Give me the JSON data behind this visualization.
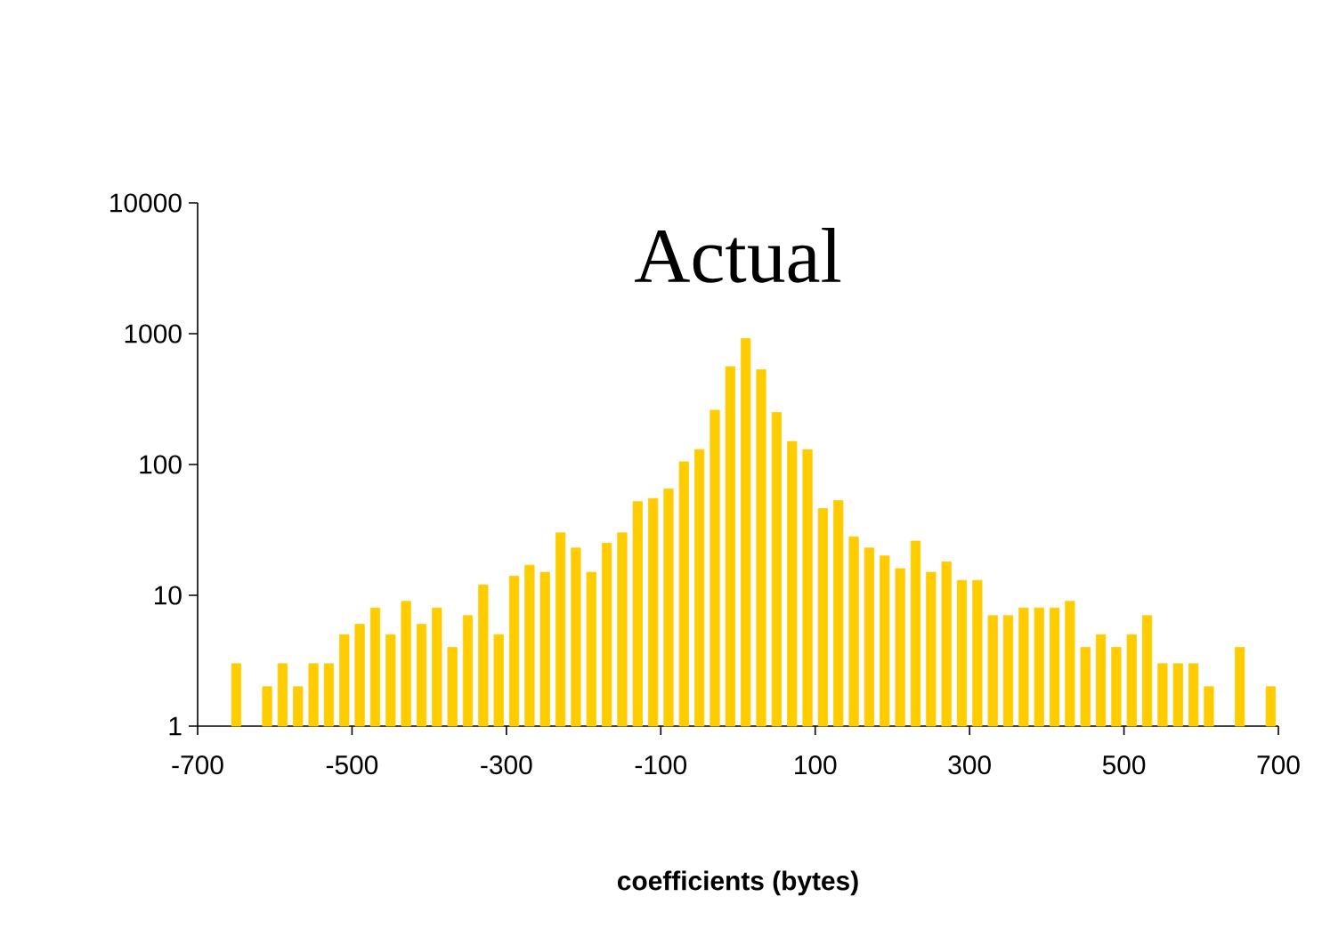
{
  "chart_data": {
    "type": "histogram",
    "title": "Actual",
    "xlabel": "coefficients (bytes)",
    "color": "#ffcc00",
    "log": "y",
    "bins": [
      -660,
      -640,
      -620,
      -600,
      -580,
      -560,
      -540,
      -520,
      -500,
      -480,
      -460,
      -440,
      -420,
      -400,
      -380,
      -360,
      -340,
      -320,
      -300,
      -280,
      -260,
      -240,
      -220,
      -200,
      -180,
      -160,
      -140,
      -120,
      -100,
      -80,
      -60,
      -40,
      -20,
      0,
      20,
      40,
      60,
      80,
      100,
      120,
      140,
      160,
      180,
      200,
      220,
      240,
      260,
      280,
      300,
      320,
      340,
      360,
      380,
      400,
      420,
      440,
      460,
      480,
      500,
      520,
      540,
      560,
      580,
      600,
      620,
      640,
      660,
      680,
      700
    ],
    "values": [
      3,
      null,
      2,
      3,
      2,
      3,
      3,
      5,
      6,
      8,
      5,
      9,
      6,
      8,
      4,
      7,
      12,
      5,
      14,
      17,
      15,
      30,
      23,
      15,
      25,
      30,
      52,
      55,
      65,
      105,
      130,
      260,
      560,
      920,
      530,
      250,
      150,
      130,
      46,
      53,
      28,
      23,
      20,
      16,
      26,
      15,
      18,
      13,
      13,
      7,
      7,
      8,
      8,
      8,
      9,
      4,
      5,
      4,
      5,
      7,
      3,
      3,
      3,
      2,
      null,
      4,
      null,
      2
    ],
    "xlim": [
      -700,
      700
    ],
    "ylim": [
      1,
      10000
    ],
    "xticks": [
      -700,
      -500,
      -300,
      -100,
      100,
      300,
      500,
      700
    ],
    "yticks": [
      1,
      10,
      100,
      1000,
      10000
    ]
  }
}
